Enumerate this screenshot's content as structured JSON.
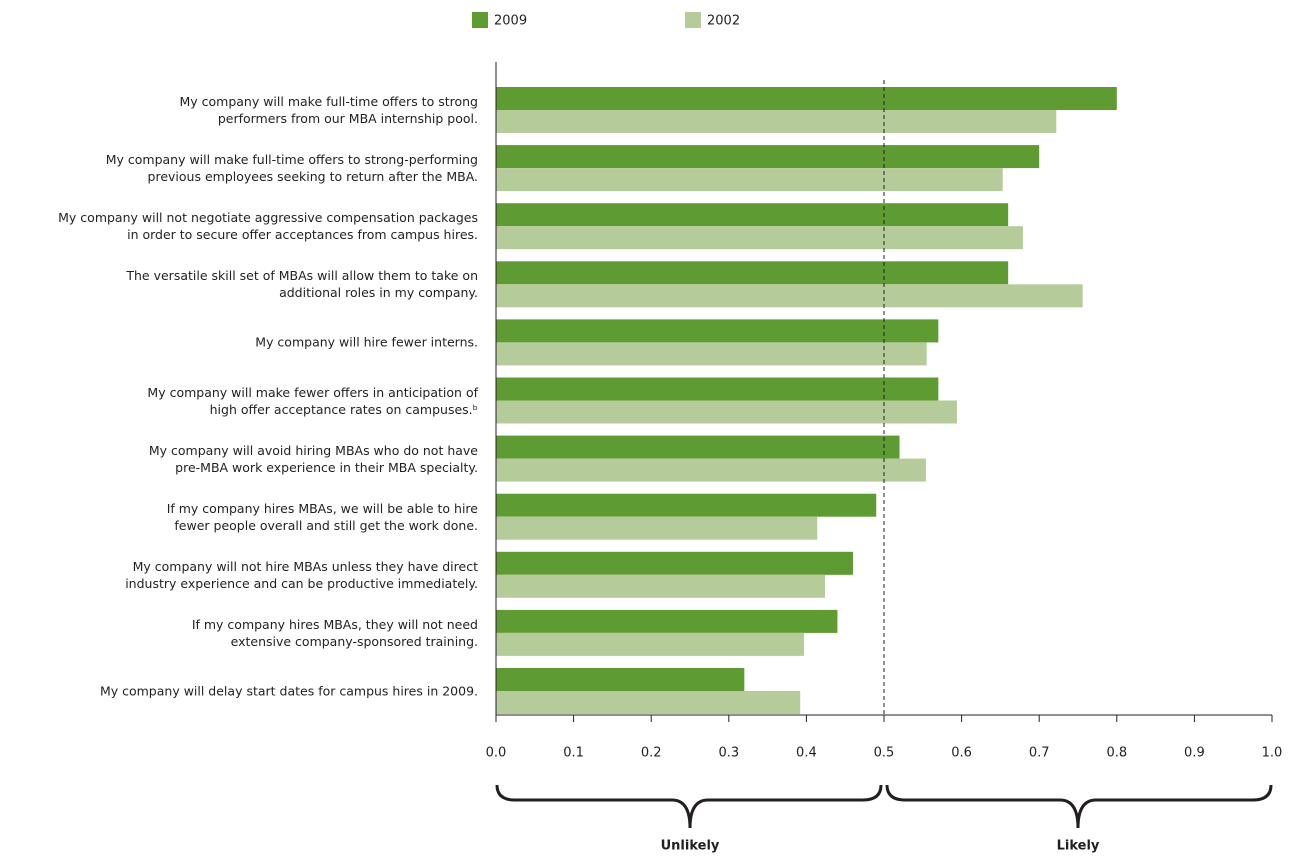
{
  "chart_data": {
    "type": "hbar",
    "categories": [
      "My company will make full-time offers to strong\nperformers from our MBA internship pool.",
      "My company will make full-time offers to strong-performing\nprevious employees seeking to return after the MBA.",
      "My company will not negotiate aggressive compensation packages\nin order to secure offer acceptances from campus hires.",
      "The versatile skill set of MBAs will allow them to take on\nadditional roles in my company.",
      "My company will hire fewer interns.",
      "My company will make fewer offers in anticipation of\nhigh offer acceptance rates on campuses.ᵇ",
      "My company will avoid hiring MBAs who do not have\npre-MBA work experience in their MBA specialty.",
      "If my company hires MBAs, we will be able to hire\nfewer people overall and still get the work done.",
      "My company will not hire MBAs unless they have direct\nindustry experience and can be productive immediately.",
      "If my company hires MBAs, they will not need\nextensive company-sponsored training.",
      "My company will delay start dates for campus hires in 2009."
    ],
    "series": [
      {
        "name": "2009",
        "color": "#5e9b33",
        "values": [
          0.8,
          0.7,
          0.66,
          0.66,
          0.57,
          0.57,
          0.52,
          0.49,
          0.46,
          0.44,
          0.32
        ]
      },
      {
        "name": "2002",
        "color": "#b5cc9a",
        "values": [
          0.722,
          0.653,
          0.679,
          0.756,
          0.555,
          0.594,
          0.554,
          0.414,
          0.424,
          0.397,
          0.392
        ]
      }
    ],
    "xlim": [
      0,
      1
    ],
    "xticks": [
      {
        "value": 0,
        "label": "0.0"
      },
      0.1,
      0.2,
      0.3,
      0.4,
      0.5,
      0.6,
      0.7,
      0.8,
      0.9,
      {
        "value": 1,
        "label": "1.0"
      }
    ],
    "reference_line": 0.5,
    "brackets": [
      {
        "label": "Unlikely",
        "from": 0,
        "to": 0.5
      },
      {
        "label": "Likely",
        "from": 0.5,
        "to": 1
      }
    ],
    "legend": "top"
  }
}
